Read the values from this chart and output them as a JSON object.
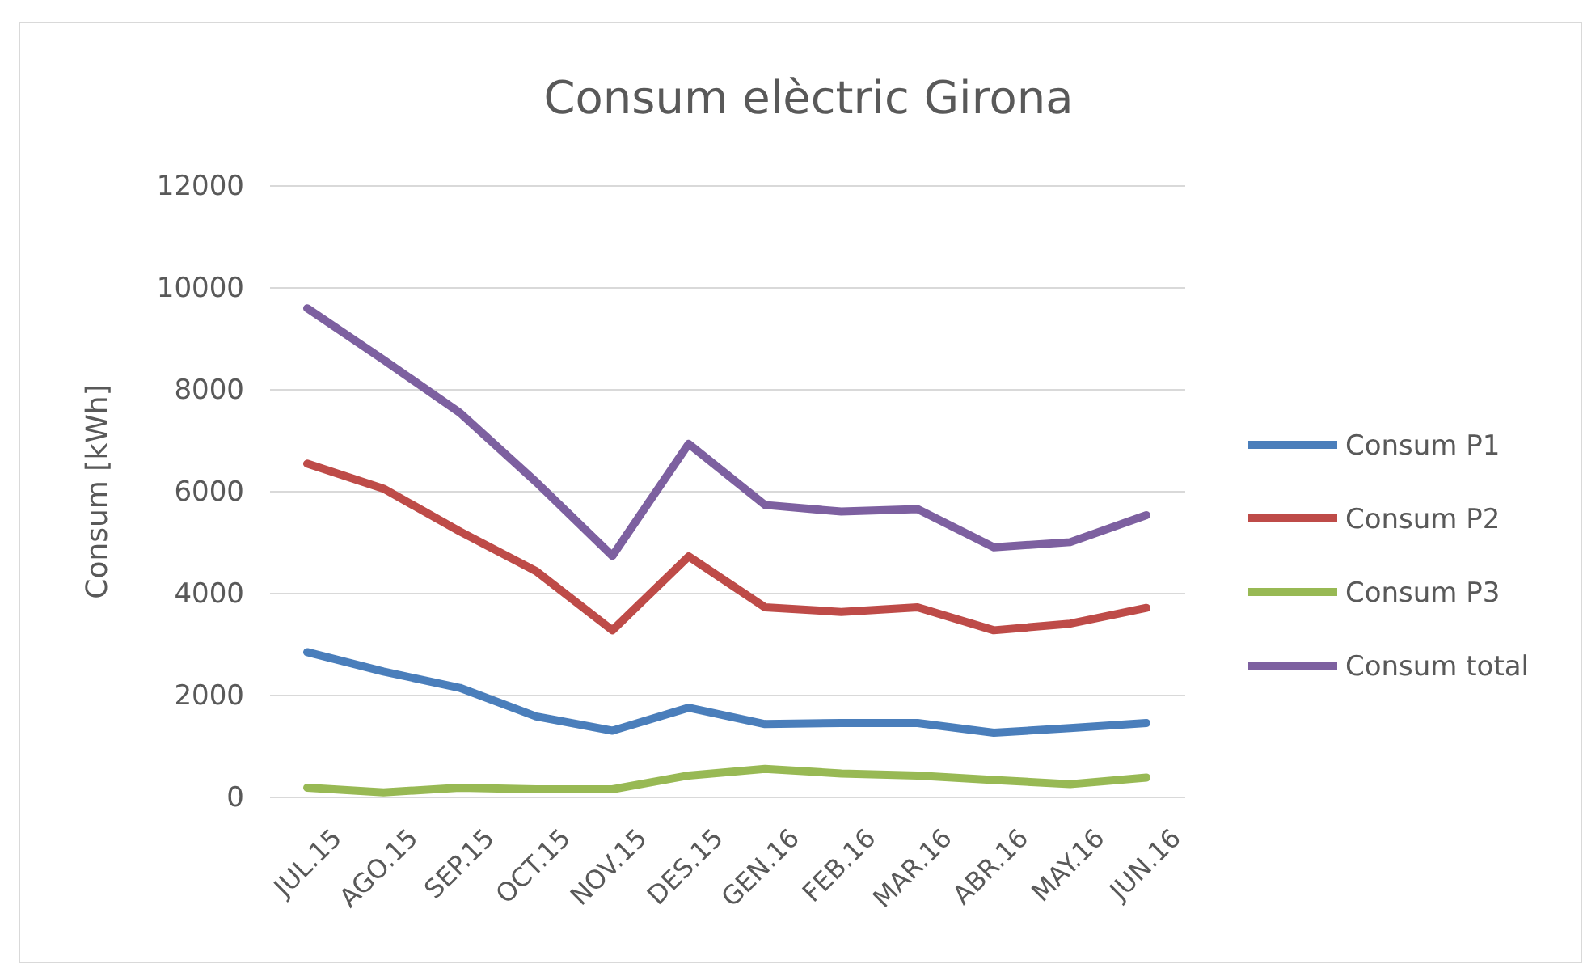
{
  "chart_data": {
    "type": "line",
    "title": "Consum elèctric Girona",
    "ylabel": "Consum [kWh]",
    "categories": [
      "JUL.15",
      "AGO.15",
      "SEP.15",
      "OCT.15",
      "NOV.15",
      "DES.15",
      "GEN.16",
      "FEB.16",
      "MAR.16",
      "ABR.16",
      "MAY.16",
      "JUN.16"
    ],
    "series": [
      {
        "name": "Consum P1",
        "color": "#4a7ebb",
        "values": [
          2850,
          2470,
          2150,
          1590,
          1310,
          1760,
          1440,
          1460,
          1460,
          1270,
          1360,
          1460
        ]
      },
      {
        "name": "Consum P2",
        "color": "#be4b48",
        "values": [
          6550,
          6060,
          5220,
          4440,
          3280,
          4730,
          3730,
          3640,
          3730,
          3280,
          3410,
          3720
        ]
      },
      {
        "name": "Consum P3",
        "color": "#98b954",
        "values": [
          190,
          100,
          190,
          160,
          160,
          430,
          560,
          470,
          430,
          340,
          260,
          390
        ]
      },
      {
        "name": "Consum total",
        "color": "#7d60a0",
        "values": [
          9600,
          8590,
          7550,
          6190,
          4740,
          6940,
          5740,
          5610,
          5660,
          4910,
          5010,
          5540
        ]
      }
    ],
    "ylim": [
      0,
      12000
    ],
    "yticks": [
      0,
      2000,
      4000,
      6000,
      8000,
      10000,
      12000
    ],
    "grid": "y",
    "legend": "right",
    "marker": "none",
    "line_style": "solid"
  }
}
